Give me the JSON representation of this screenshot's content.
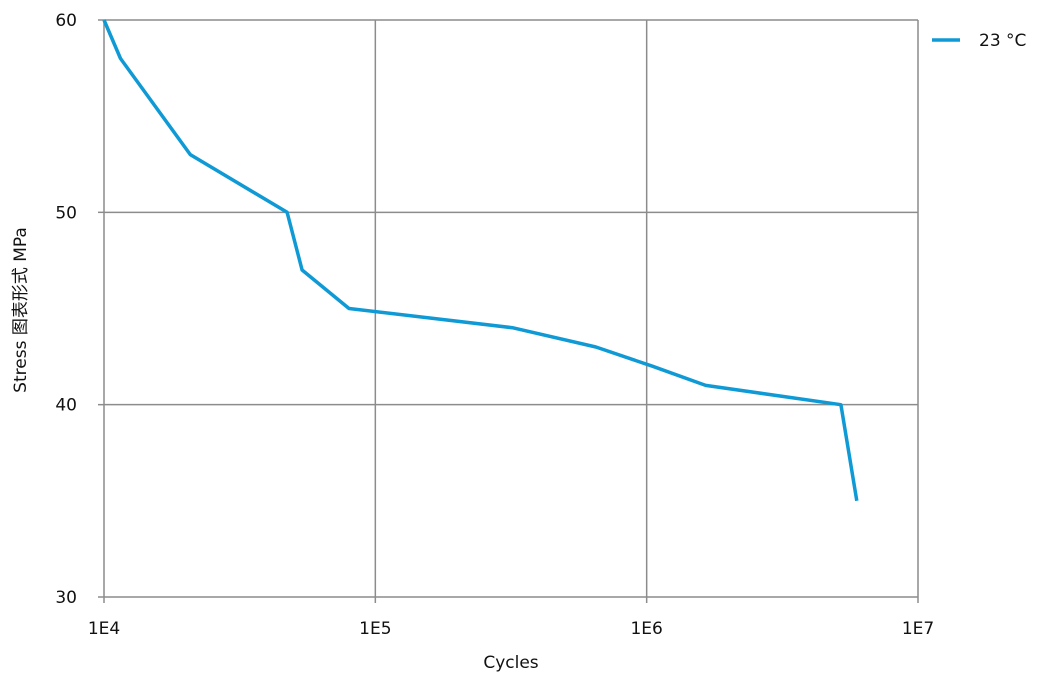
{
  "chart_data": {
    "type": "line",
    "title": "",
    "xlabel": "Cycles",
    "ylabel": "Stress 图表形式  MPa",
    "x_scale": "log",
    "xlim": [
      10000,
      10000000
    ],
    "ylim": [
      30,
      60
    ],
    "x_tick_values": [
      10000,
      100000,
      1000000,
      10000000
    ],
    "x_tick_labels": [
      "1E4",
      "1E5",
      "1E6",
      "1E7"
    ],
    "y_tick_values": [
      30,
      40,
      50,
      60
    ],
    "y_tick_labels": [
      "30",
      "40",
      "50",
      "60"
    ],
    "grid": true,
    "legend_position": "top-right",
    "series": [
      {
        "name": "23 °C",
        "color": "#0f9ad6",
        "x": [
          10000,
          11500,
          20800,
          47300,
          53700,
          80000,
          320000,
          650000,
          1050000,
          1650000,
          5200000,
          5950000
        ],
        "y": [
          60,
          58,
          53,
          50,
          47,
          45,
          44,
          43,
          42,
          41,
          40,
          35
        ]
      }
    ]
  }
}
